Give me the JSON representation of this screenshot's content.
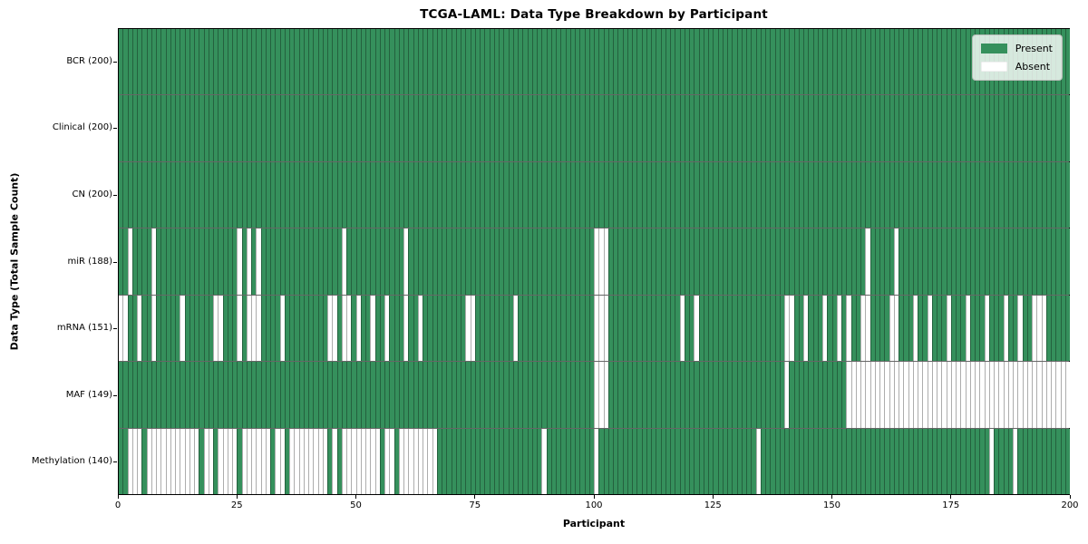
{
  "chart_data": {
    "type": "heatmap",
    "title": "TCGA-LAML: Data Type Breakdown by Participant",
    "xlabel": "Participant",
    "ylabel": "Data Type (Total Sample Count)",
    "x_ticks": [
      0,
      25,
      50,
      75,
      100,
      125,
      150,
      175,
      200
    ],
    "x_range": [
      0,
      200
    ],
    "n_participants": 200,
    "grid": false,
    "legend": {
      "position": "upper right",
      "present": {
        "label": "Present",
        "color": "#35905c"
      },
      "absent": {
        "label": "Absent",
        "color": "#ffffff"
      }
    },
    "colors": {
      "present": "#35905c",
      "absent": "#ffffff",
      "cell_edge": "rgba(0,0,0,0.32)",
      "row_divider": "rgba(0,0,0,0.6)",
      "plot_border": "#000000",
      "background": "#ffffff"
    },
    "rows": [
      {
        "data_type": "BCR",
        "label": "BCR (200)",
        "total": 200,
        "absent_ranges": []
      },
      {
        "data_type": "Clinical",
        "label": "Clinical (200)",
        "total": 200,
        "absent_ranges": []
      },
      {
        "data_type": "CN",
        "label": "CN (200)",
        "total": 200,
        "absent_ranges": []
      },
      {
        "data_type": "miR",
        "label": "miR (188)",
        "total": 188,
        "absent_ranges": [
          [
            2,
            2
          ],
          [
            7,
            7
          ],
          [
            25,
            25
          ],
          [
            27,
            27
          ],
          [
            29,
            29
          ],
          [
            47,
            47
          ],
          [
            60,
            60
          ],
          [
            100,
            102
          ],
          [
            157,
            157
          ],
          [
            163,
            163
          ]
        ]
      },
      {
        "data_type": "mRNA",
        "label": "mRNA (151)",
        "total": 151,
        "absent_ranges": [
          [
            0,
            1
          ],
          [
            4,
            4
          ],
          [
            7,
            7
          ],
          [
            13,
            13
          ],
          [
            20,
            21
          ],
          [
            25,
            25
          ],
          [
            27,
            29
          ],
          [
            34,
            34
          ],
          [
            44,
            45
          ],
          [
            47,
            48
          ],
          [
            50,
            50
          ],
          [
            53,
            53
          ],
          [
            56,
            56
          ],
          [
            60,
            60
          ],
          [
            63,
            63
          ],
          [
            73,
            74
          ],
          [
            83,
            83
          ],
          [
            100,
            102
          ],
          [
            118,
            118
          ],
          [
            121,
            121
          ],
          [
            140,
            141
          ],
          [
            144,
            144
          ],
          [
            148,
            148
          ],
          [
            151,
            151
          ],
          [
            153,
            153
          ],
          [
            156,
            157
          ],
          [
            162,
            163
          ],
          [
            167,
            167
          ],
          [
            170,
            170
          ],
          [
            174,
            174
          ],
          [
            178,
            178
          ],
          [
            182,
            182
          ],
          [
            186,
            186
          ],
          [
            189,
            189
          ],
          [
            192,
            194
          ]
        ]
      },
      {
        "data_type": "MAF",
        "label": "MAF (149)",
        "total": 149,
        "absent_ranges": [
          [
            100,
            102
          ],
          [
            140,
            140
          ],
          [
            153,
            199
          ]
        ]
      },
      {
        "data_type": "Methylation",
        "label": "Methylation (140)",
        "total": 140,
        "absent_ranges": [
          [
            2,
            4
          ],
          [
            6,
            16
          ],
          [
            18,
            19
          ],
          [
            21,
            24
          ],
          [
            26,
            31
          ],
          [
            33,
            34
          ],
          [
            36,
            43
          ],
          [
            45,
            45
          ],
          [
            47,
            54
          ],
          [
            56,
            57
          ],
          [
            59,
            66
          ],
          [
            89,
            89
          ],
          [
            100,
            100
          ],
          [
            134,
            134
          ],
          [
            183,
            183
          ],
          [
            188,
            188
          ]
        ]
      }
    ]
  }
}
